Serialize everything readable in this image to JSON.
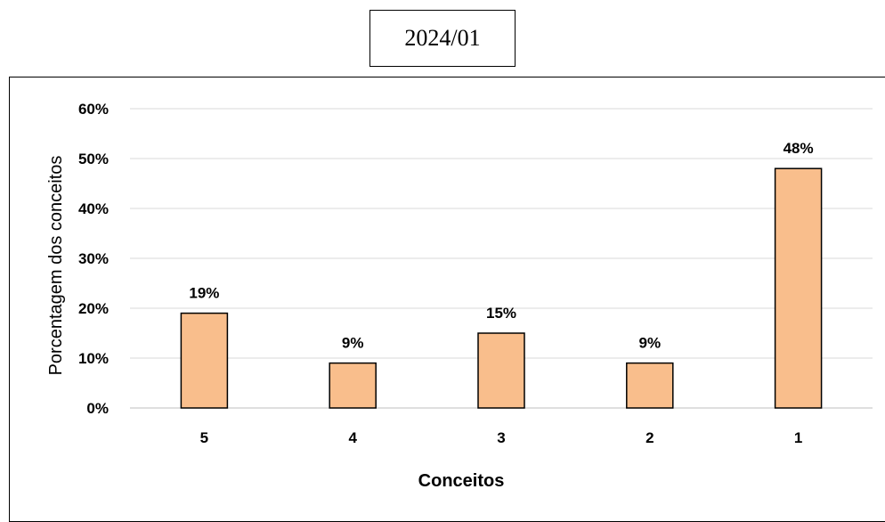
{
  "chart_data": {
    "type": "bar",
    "title": "2024/01",
    "categories": [
      "5",
      "4",
      "3",
      "2",
      "1"
    ],
    "values": [
      19,
      9,
      15,
      9,
      48
    ],
    "data_labels": [
      "19%",
      "9%",
      "15%",
      "9%",
      "48%"
    ],
    "xlabel": "Conceitos",
    "ylabel": "Porcentagem dos conceitos",
    "ylim": [
      0,
      60
    ],
    "yticks": [
      "0%",
      "10%",
      "20%",
      "30%",
      "40%",
      "50%",
      "60%"
    ],
    "grid": true,
    "legend": "none",
    "bar_color": "#f9be8c",
    "bar_edge_color": "#000000",
    "grid_color": "#d9d9d9"
  }
}
